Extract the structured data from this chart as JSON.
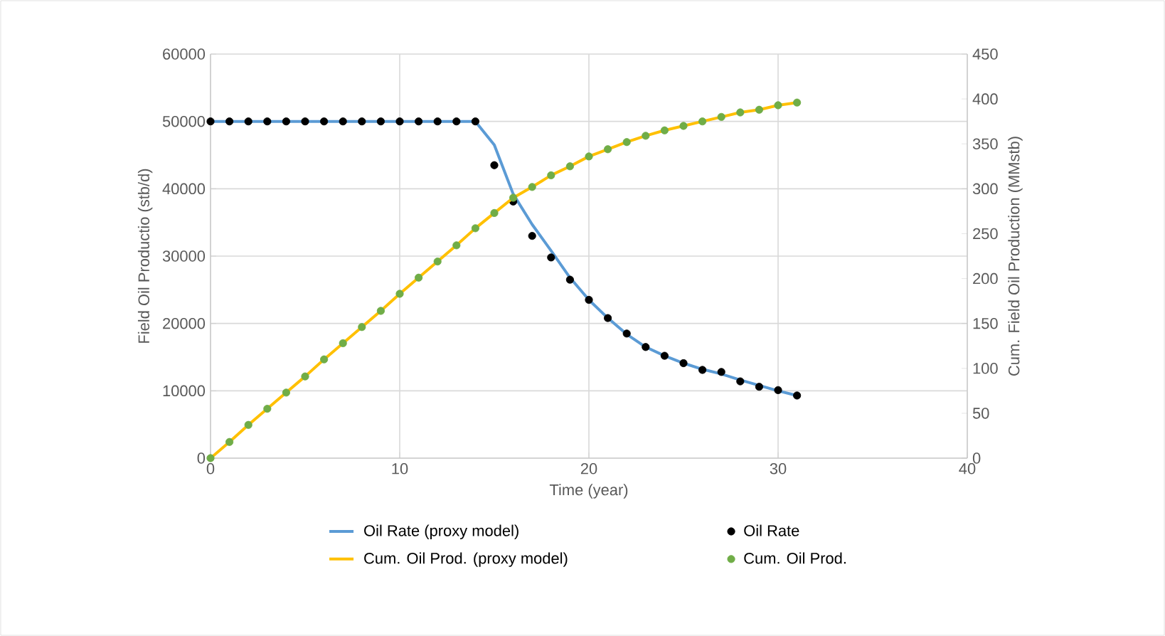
{
  "chart_data": {
    "type": "line",
    "xlabel": "Time (year)",
    "ylabel": "Field Oil Productio (stb/d)",
    "y2label": "Cum. Field Oil Production (MMstb)",
    "x": [
      0,
      1,
      2,
      3,
      4,
      5,
      6,
      7,
      8,
      9,
      10,
      11,
      12,
      13,
      14,
      15,
      16,
      17,
      18,
      19,
      20,
      21,
      22,
      23,
      24,
      25,
      26,
      27,
      28,
      29,
      30,
      31
    ],
    "series": [
      {
        "name": "Oil Rate (proxy model)",
        "color": "#5b9bd5",
        "values": [
          50000,
          50000,
          50000,
          50000,
          50000,
          50000,
          50000,
          50000,
          50000,
          50000,
          50000,
          50000,
          50000,
          50000,
          50000,
          46500,
          39200,
          34700,
          30800,
          26800,
          23500,
          20800,
          18400,
          16500,
          15200,
          14100,
          13200,
          12500,
          11600,
          10800,
          10000,
          9300
        ]
      },
      {
        "name": "Oil Rate",
        "type": "scatter",
        "marker": "circle",
        "color": "#000000",
        "values": [
          50000,
          50000,
          50000,
          50000,
          50000,
          50000,
          50000,
          50000,
          50000,
          50000,
          50000,
          50000,
          50000,
          50000,
          50000,
          43500,
          38100,
          33000,
          29800,
          26500,
          23500,
          20800,
          18500,
          16500,
          15200,
          14100,
          13100,
          12800,
          11400,
          10600,
          10100,
          9300
        ]
      },
      {
        "name": "Cum. Oil Prod. (proxy model)",
        "axis": "y2",
        "color": "#ffc000",
        "values": [
          0,
          18,
          37,
          55,
          73,
          91,
          110,
          128,
          146,
          164,
          183,
          201,
          219,
          237,
          256,
          273,
          290,
          302,
          315,
          325,
          336,
          344,
          352,
          359,
          365,
          370,
          375,
          380,
          385,
          388,
          393,
          396
        ]
      },
      {
        "name": "Cum. Oil Prod.",
        "type": "scatter",
        "marker": "circle",
        "axis": "y2",
        "color": "#70ad47",
        "values": [
          0,
          18,
          37,
          55,
          73,
          91,
          110,
          128,
          146,
          164,
          183,
          201,
          219,
          237,
          256,
          273,
          290,
          302,
          315,
          325,
          336,
          344,
          352,
          359,
          365,
          370,
          375,
          380,
          385,
          388,
          393,
          396
        ]
      }
    ],
    "xlim": [
      0,
      40
    ],
    "xticks": [
      0,
      10,
      20,
      30,
      40
    ],
    "ylim": [
      0,
      60000
    ],
    "yticks": [
      0,
      10000,
      20000,
      30000,
      40000,
      50000,
      60000
    ],
    "y2lim": [
      0,
      450
    ],
    "y2ticks": [
      0,
      50,
      100,
      150,
      200,
      250,
      300,
      350,
      400,
      450
    ],
    "grid": true,
    "legend": "bottom"
  }
}
